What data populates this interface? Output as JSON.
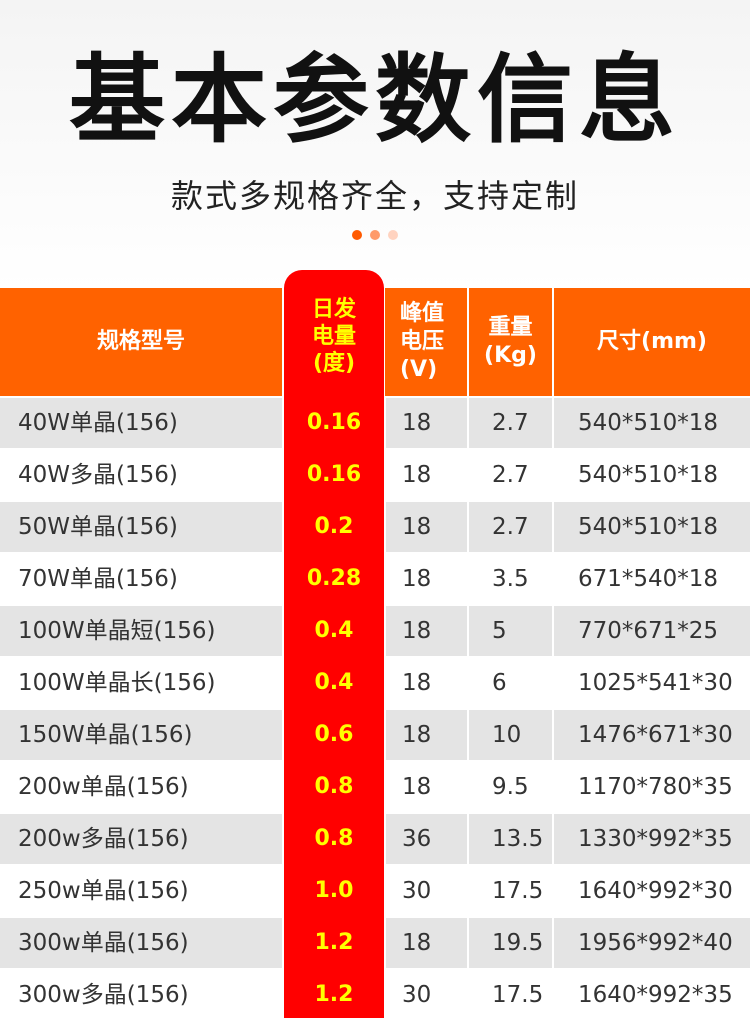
{
  "header": {
    "title": "基本参数信息",
    "subtitle": "款式多规格齐全，支持定制",
    "dot_colors": [
      "#ff5a00",
      "#ff9a6a",
      "#ffd3c0"
    ]
  },
  "table": {
    "columns": [
      {
        "lines": [
          "规格型号"
        ]
      },
      {
        "lines": [
          "日发",
          "电量",
          "(度)"
        ]
      },
      {
        "lines": [
          "峰值",
          "电压",
          "(V)"
        ]
      },
      {
        "lines": [
          "重量",
          "(Kg)"
        ]
      },
      {
        "lines": [
          "尺寸(mm)"
        ]
      }
    ],
    "rows": [
      {
        "model": "40W单晶(156)",
        "daily_kwh": "0.16",
        "voltage": "18",
        "weight": "2.7",
        "size": "540*510*18"
      },
      {
        "model": "40W多晶(156)",
        "daily_kwh": "0.16",
        "voltage": "18",
        "weight": "2.7",
        "size": "540*510*18"
      },
      {
        "model": "50W单晶(156)",
        "daily_kwh": "0.2",
        "voltage": "18",
        "weight": "2.7",
        "size": "540*510*18"
      },
      {
        "model": "70W单晶(156)",
        "daily_kwh": "0.28",
        "voltage": "18",
        "weight": "3.5",
        "size": "671*540*18"
      },
      {
        "model": "100W单晶短(156)",
        "daily_kwh": "0.4",
        "voltage": "18",
        "weight": "5",
        "size": "770*671*25"
      },
      {
        "model": "100W单晶长(156)",
        "daily_kwh": "0.4",
        "voltage": "18",
        "weight": "6",
        "size": "1025*541*30"
      },
      {
        "model": "150W单晶(156)",
        "daily_kwh": "0.6",
        "voltage": "18",
        "weight": "10",
        "size": "1476*671*30"
      },
      {
        "model": "200w单晶(156)",
        "daily_kwh": "0.8",
        "voltage": "18",
        "weight": "9.5",
        "size": "1170*780*35"
      },
      {
        "model": "200w多晶(156)",
        "daily_kwh": "0.8",
        "voltage": "36",
        "weight": "13.5",
        "size": "1330*992*35"
      },
      {
        "model": "250w单晶(156)",
        "daily_kwh": "1.0",
        "voltage": "30",
        "weight": "17.5",
        "size": "1640*992*30"
      },
      {
        "model": "300w单晶(156)",
        "daily_kwh": "1.2",
        "voltage": "18",
        "weight": "19.5",
        "size": "1956*992*40"
      },
      {
        "model": "300w多晶(156)",
        "daily_kwh": "1.2",
        "voltage": "30",
        "weight": "17.5",
        "size": "1640*992*35"
      }
    ]
  },
  "colors": {
    "header_bg": "#ff6200",
    "highlight_column": "#ff0000",
    "highlight_text": "#ffff00",
    "row_stripe": "#e4e4e4"
  }
}
